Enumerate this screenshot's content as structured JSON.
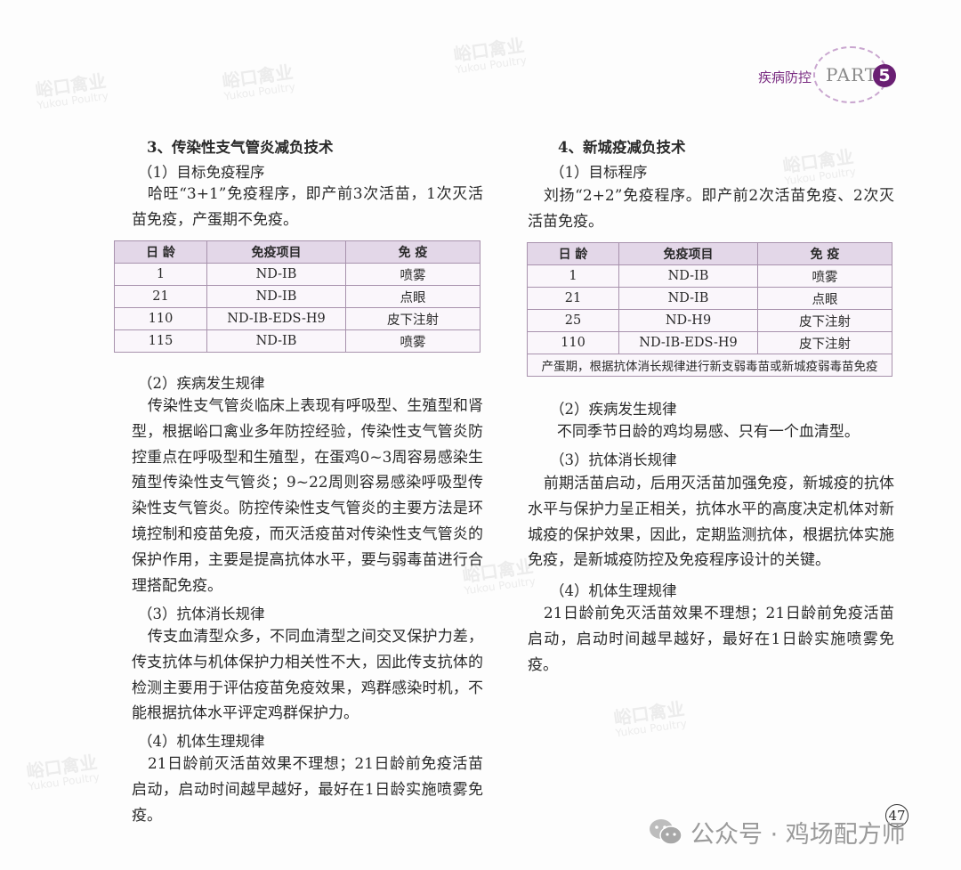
{
  "watermark": {
    "cn": "峪口禽业",
    "en": "Yukou Poultry"
  },
  "header": {
    "section": "疾病防控",
    "part": "PART",
    "part_number": "5",
    "accent": "#6a1f73"
  },
  "left": {
    "title": "3、传染性支气管炎减负技术",
    "s1": "（1）目标免疫程序",
    "p1": "哈旺“3+1”免疫程序，即产前3次活苗，1次灭活苗免疫，产蛋期不免疫。",
    "table": {
      "headers": [
        "日 龄",
        "免疫项目",
        "免 疫"
      ],
      "rows": [
        [
          "1",
          "ND-IB",
          "喷雾"
        ],
        [
          "21",
          "ND-IB",
          "点眼"
        ],
        [
          "110",
          "ND-IB-EDS-H9",
          "皮下注射"
        ],
        [
          "115",
          "ND-IB",
          "喷雾"
        ]
      ]
    },
    "s2": "（2）疾病发生规律",
    "p2": "传染性支气管炎临床上表现有呼吸型、生殖型和肾型，根据峪口禽业多年防控经验，传染性支气管炎防控重点在呼吸型和生殖型，在蛋鸡0~3周容易感染生殖型传染性支气管炎；9~22周则容易感染呼吸型传染性支气管炎。防控传染性支气管炎的主要方法是环境控制和疫苗免疫，而灭活疫苗对传染性支气管炎的保护作用，主要是提高抗体水平，要与弱毒苗进行合理搭配免疫。",
    "s3": "（3）抗体消长规律",
    "p3": "传支血清型众多，不同血清型之间交叉保护力差，传支抗体与机体保护力相关性不大，因此传支抗体的检测主要用于评估疫苗免疫效果，鸡群感染时机，不能根据抗体水平评定鸡群保护力。",
    "s4": "（4）机体生理规律",
    "p4": "21日龄前灭活苗效果不理想；21日龄前免疫活苗启动，启动时间越早越好，最好在1日龄实施喷雾免疫。"
  },
  "right": {
    "title": "4、新城疫减负技术",
    "s1": "（1）目标程序",
    "p1": "刘扬“2+2”免疫程序。即产前2次活苗免疫、2次灭活苗免疫。",
    "table": {
      "headers": [
        "日 龄",
        "免疫项目",
        "免 疫"
      ],
      "rows": [
        [
          "1",
          "ND-IB",
          "喷雾"
        ],
        [
          "21",
          "ND-IB",
          "点眼"
        ],
        [
          "25",
          "ND-H9",
          "皮下注射"
        ],
        [
          "110",
          "ND-IB-EDS-H9",
          "皮下注射"
        ]
      ],
      "note": "产蛋期，根据抗体消长规律进行新支弱毒苗或新城疫弱毒苗免疫"
    },
    "s2": "（2）疾病发生规律",
    "p2": "不同季节日龄的鸡均易感、只有一个血清型。",
    "s3": "（3）抗体消长规律",
    "p3": "前期活苗启动，后用灭活苗加强免疫，新城疫的抗体水平与保护力呈正相关，抗体水平的高度决定机体对新城疫的保护效果，因此，定期监测抗体，根据抗体实施免疫，是新城疫防控及免疫程序设计的关键。",
    "s4": "（4）机体生理规律",
    "p4": "21日龄前免灭活苗效果不理想；21日龄前免疫活苗启动，启动时间越早越好，最好在1日龄实施喷雾免疫。"
  },
  "footer": {
    "page_number": "47",
    "account": "公众号 · 鸡场配方师"
  }
}
